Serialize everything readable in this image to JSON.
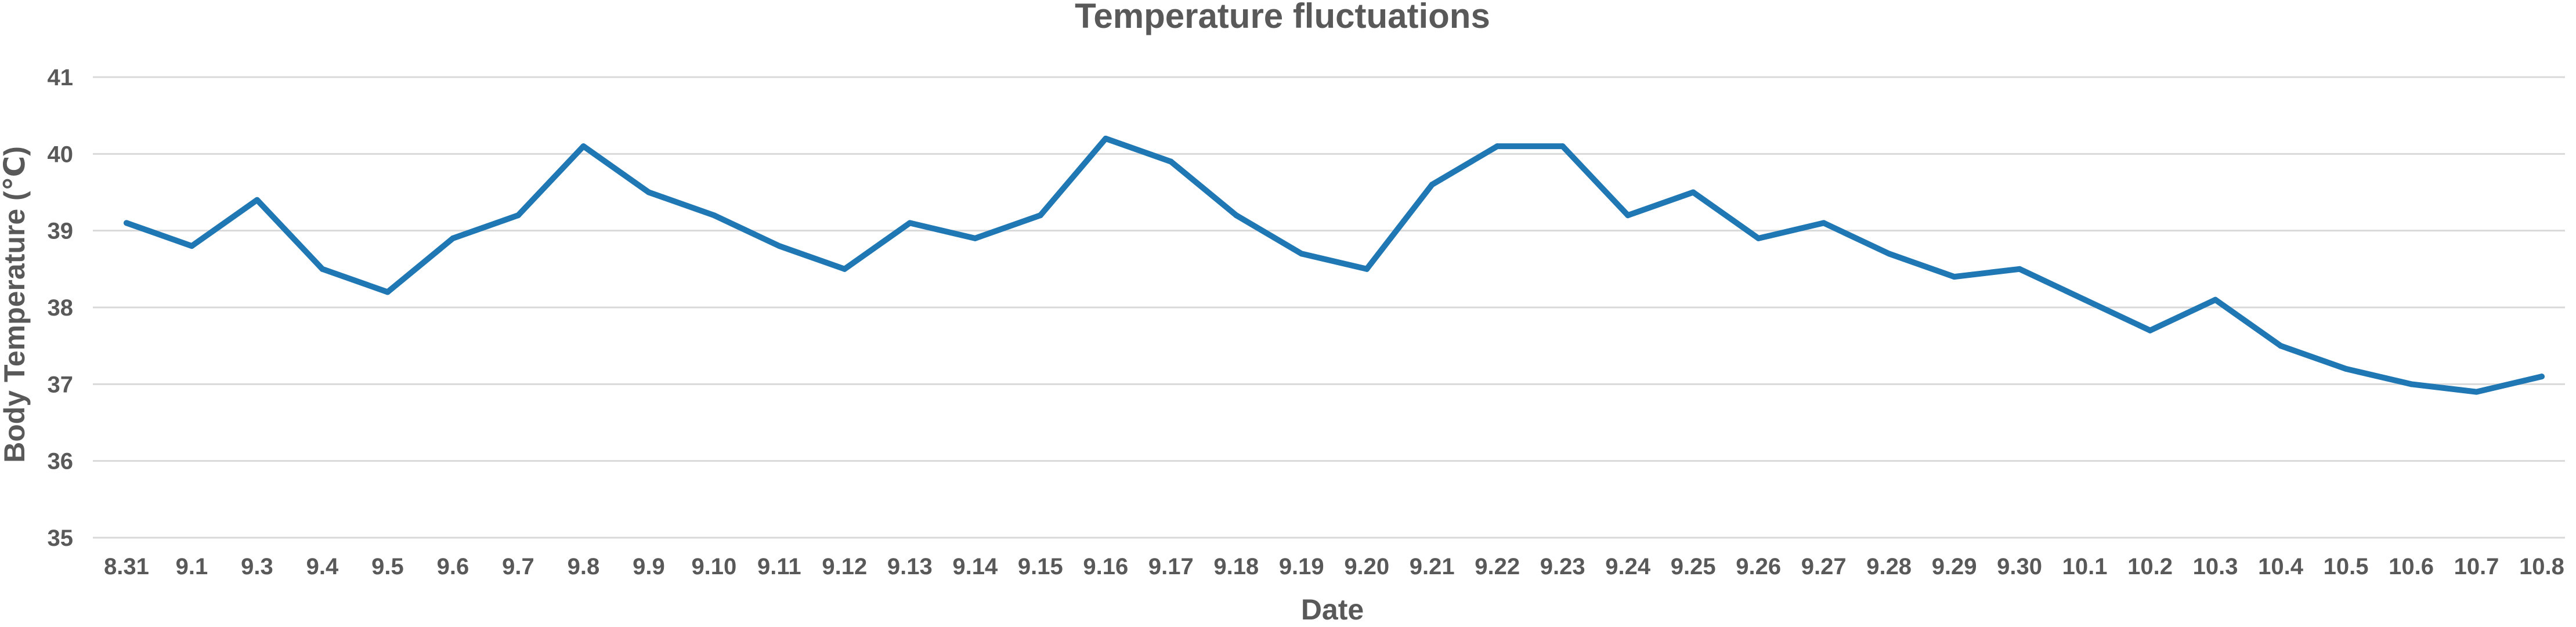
{
  "chart_data": {
    "type": "line",
    "title": "Temperature fluctuations",
    "xlabel": "Date",
    "ylabel": "Body Temperature (℃)",
    "ylim": [
      35,
      41
    ],
    "yticks": [
      35,
      36,
      37,
      38,
      39,
      40,
      41
    ],
    "grid": true,
    "legend": "none",
    "color": "#1f77b4",
    "categories": [
      "8.31",
      "9.1",
      "9.3",
      "9.4",
      "9.5",
      "9.6",
      "9.7",
      "9.8",
      "9.9",
      "9.10",
      "9.11",
      "9.12",
      "9.13",
      "9.14",
      "9.15",
      "9.16",
      "9.17",
      "9.18",
      "9.19",
      "9.20",
      "9.21",
      "9.22",
      "9.23",
      "9.24",
      "9.25",
      "9.26",
      "9.27",
      "9.28",
      "9.29",
      "9.30",
      "10.1",
      "10.2",
      "10.3",
      "10.4",
      "10.5",
      "10.6",
      "10.7",
      "10.8"
    ],
    "values": [
      39.1,
      38.8,
      39.4,
      38.5,
      38.2,
      38.9,
      39.2,
      40.1,
      39.5,
      39.2,
      38.8,
      38.5,
      39.1,
      38.9,
      39.2,
      40.2,
      39.9,
      39.2,
      38.7,
      38.5,
      39.6,
      40.1,
      40.1,
      39.2,
      39.5,
      38.9,
      39.1,
      38.7,
      38.4,
      38.5,
      38.1,
      37.7,
      38.1,
      37.5,
      37.2,
      37.0,
      36.9,
      37.1
    ]
  }
}
